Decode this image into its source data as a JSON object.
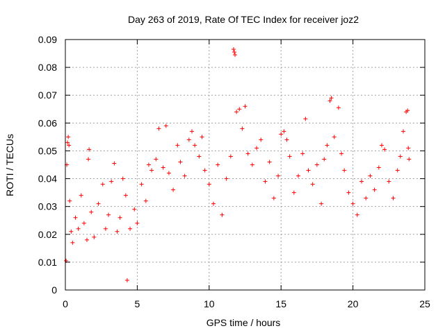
{
  "chart_data": {
    "type": "scatter",
    "title": "Day 263 of 2019, Rate Of TEC Index for receiver joz2",
    "xlabel": "GPS time / hours",
    "ylabel": "ROTI / TECUs",
    "xlim": [
      0,
      25
    ],
    "ylim": [
      0,
      0.09
    ],
    "x_ticks": [
      0,
      5,
      10,
      15,
      20,
      25
    ],
    "y_ticks": [
      0,
      0.01,
      0.02,
      0.03,
      0.04,
      0.05,
      0.06,
      0.07,
      0.08,
      0.09
    ],
    "x_tick_labels": [
      "0",
      "5",
      "10",
      "15",
      "20",
      "25"
    ],
    "y_tick_labels": [
      "0",
      "0.01",
      "0.02",
      "0.03",
      "0.04",
      "0.05",
      "0.06",
      "0.07",
      "0.08",
      "0.09"
    ],
    "grid": true,
    "marker": "plus",
    "marker_color": "#ff0000",
    "series": [
      {
        "name": "ROTI",
        "points": [
          [
            0.05,
            0.0105
          ],
          [
            0.1,
            0.045
          ],
          [
            0.15,
            0.053
          ],
          [
            0.2,
            0.055
          ],
          [
            0.25,
            0.052
          ],
          [
            0.3,
            0.032
          ],
          [
            0.4,
            0.021
          ],
          [
            0.5,
            0.017
          ],
          [
            0.7,
            0.026
          ],
          [
            0.9,
            0.022
          ],
          [
            1.1,
            0.034
          ],
          [
            1.3,
            0.024
          ],
          [
            1.5,
            0.018
          ],
          [
            1.6,
            0.047
          ],
          [
            1.65,
            0.0505
          ],
          [
            1.8,
            0.028
          ],
          [
            2.0,
            0.019
          ],
          [
            2.3,
            0.031
          ],
          [
            2.6,
            0.038
          ],
          [
            2.8,
            0.022
          ],
          [
            3.0,
            0.027
          ],
          [
            3.2,
            0.039
          ],
          [
            3.4,
            0.0455
          ],
          [
            3.6,
            0.021
          ],
          [
            3.8,
            0.026
          ],
          [
            4.0,
            0.04
          ],
          [
            4.2,
            0.034
          ],
          [
            4.3,
            0.0035
          ],
          [
            4.5,
            0.022
          ],
          [
            4.8,
            0.029
          ],
          [
            5.0,
            0.024
          ],
          [
            5.3,
            0.038
          ],
          [
            5.6,
            0.032
          ],
          [
            5.8,
            0.045
          ],
          [
            6.0,
            0.043
          ],
          [
            6.3,
            0.047
          ],
          [
            6.5,
            0.058
          ],
          [
            6.8,
            0.044
          ],
          [
            7.0,
            0.059
          ],
          [
            7.2,
            0.042
          ],
          [
            7.5,
            0.036
          ],
          [
            7.8,
            0.052
          ],
          [
            8.0,
            0.046
          ],
          [
            8.3,
            0.041
          ],
          [
            8.6,
            0.054
          ],
          [
            8.8,
            0.057
          ],
          [
            9.0,
            0.052
          ],
          [
            9.3,
            0.048
          ],
          [
            9.5,
            0.055
          ],
          [
            9.7,
            0.043
          ],
          [
            10.0,
            0.038
          ],
          [
            10.3,
            0.031
          ],
          [
            10.6,
            0.045
          ],
          [
            10.9,
            0.027
          ],
          [
            11.2,
            0.04
          ],
          [
            11.5,
            0.048
          ],
          [
            11.7,
            0.0865
          ],
          [
            11.75,
            0.0855
          ],
          [
            11.8,
            0.0845
          ],
          [
            11.9,
            0.064
          ],
          [
            12.1,
            0.065
          ],
          [
            12.3,
            0.058
          ],
          [
            12.5,
            0.066
          ],
          [
            12.7,
            0.049
          ],
          [
            13.0,
            0.045
          ],
          [
            13.3,
            0.051
          ],
          [
            13.6,
            0.054
          ],
          [
            13.9,
            0.039
          ],
          [
            14.2,
            0.046
          ],
          [
            14.5,
            0.033
          ],
          [
            14.8,
            0.041
          ],
          [
            15.0,
            0.056
          ],
          [
            15.2,
            0.057
          ],
          [
            15.4,
            0.054
          ],
          [
            15.6,
            0.048
          ],
          [
            15.9,
            0.035
          ],
          [
            16.2,
            0.041
          ],
          [
            16.5,
            0.049
          ],
          [
            16.7,
            0.0615
          ],
          [
            16.9,
            0.043
          ],
          [
            17.2,
            0.038
          ],
          [
            17.5,
            0.045
          ],
          [
            17.8,
            0.031
          ],
          [
            18.0,
            0.047
          ],
          [
            18.2,
            0.052
          ],
          [
            18.4,
            0.068
          ],
          [
            18.5,
            0.069
          ],
          [
            18.7,
            0.055
          ],
          [
            19.0,
            0.0655
          ],
          [
            19.2,
            0.049
          ],
          [
            19.4,
            0.043
          ],
          [
            19.7,
            0.035
          ],
          [
            20.0,
            0.031
          ],
          [
            20.3,
            0.027
          ],
          [
            20.6,
            0.039
          ],
          [
            20.9,
            0.033
          ],
          [
            21.2,
            0.041
          ],
          [
            21.5,
            0.036
          ],
          [
            21.8,
            0.044
          ],
          [
            22.0,
            0.052
          ],
          [
            22.2,
            0.0505
          ],
          [
            22.5,
            0.039
          ],
          [
            22.8,
            0.033
          ],
          [
            23.1,
            0.043
          ],
          [
            23.3,
            0.048
          ],
          [
            23.5,
            0.057
          ],
          [
            23.7,
            0.064
          ],
          [
            23.8,
            0.0645
          ],
          [
            23.85,
            0.051
          ],
          [
            23.9,
            0.047
          ]
        ]
      }
    ]
  }
}
